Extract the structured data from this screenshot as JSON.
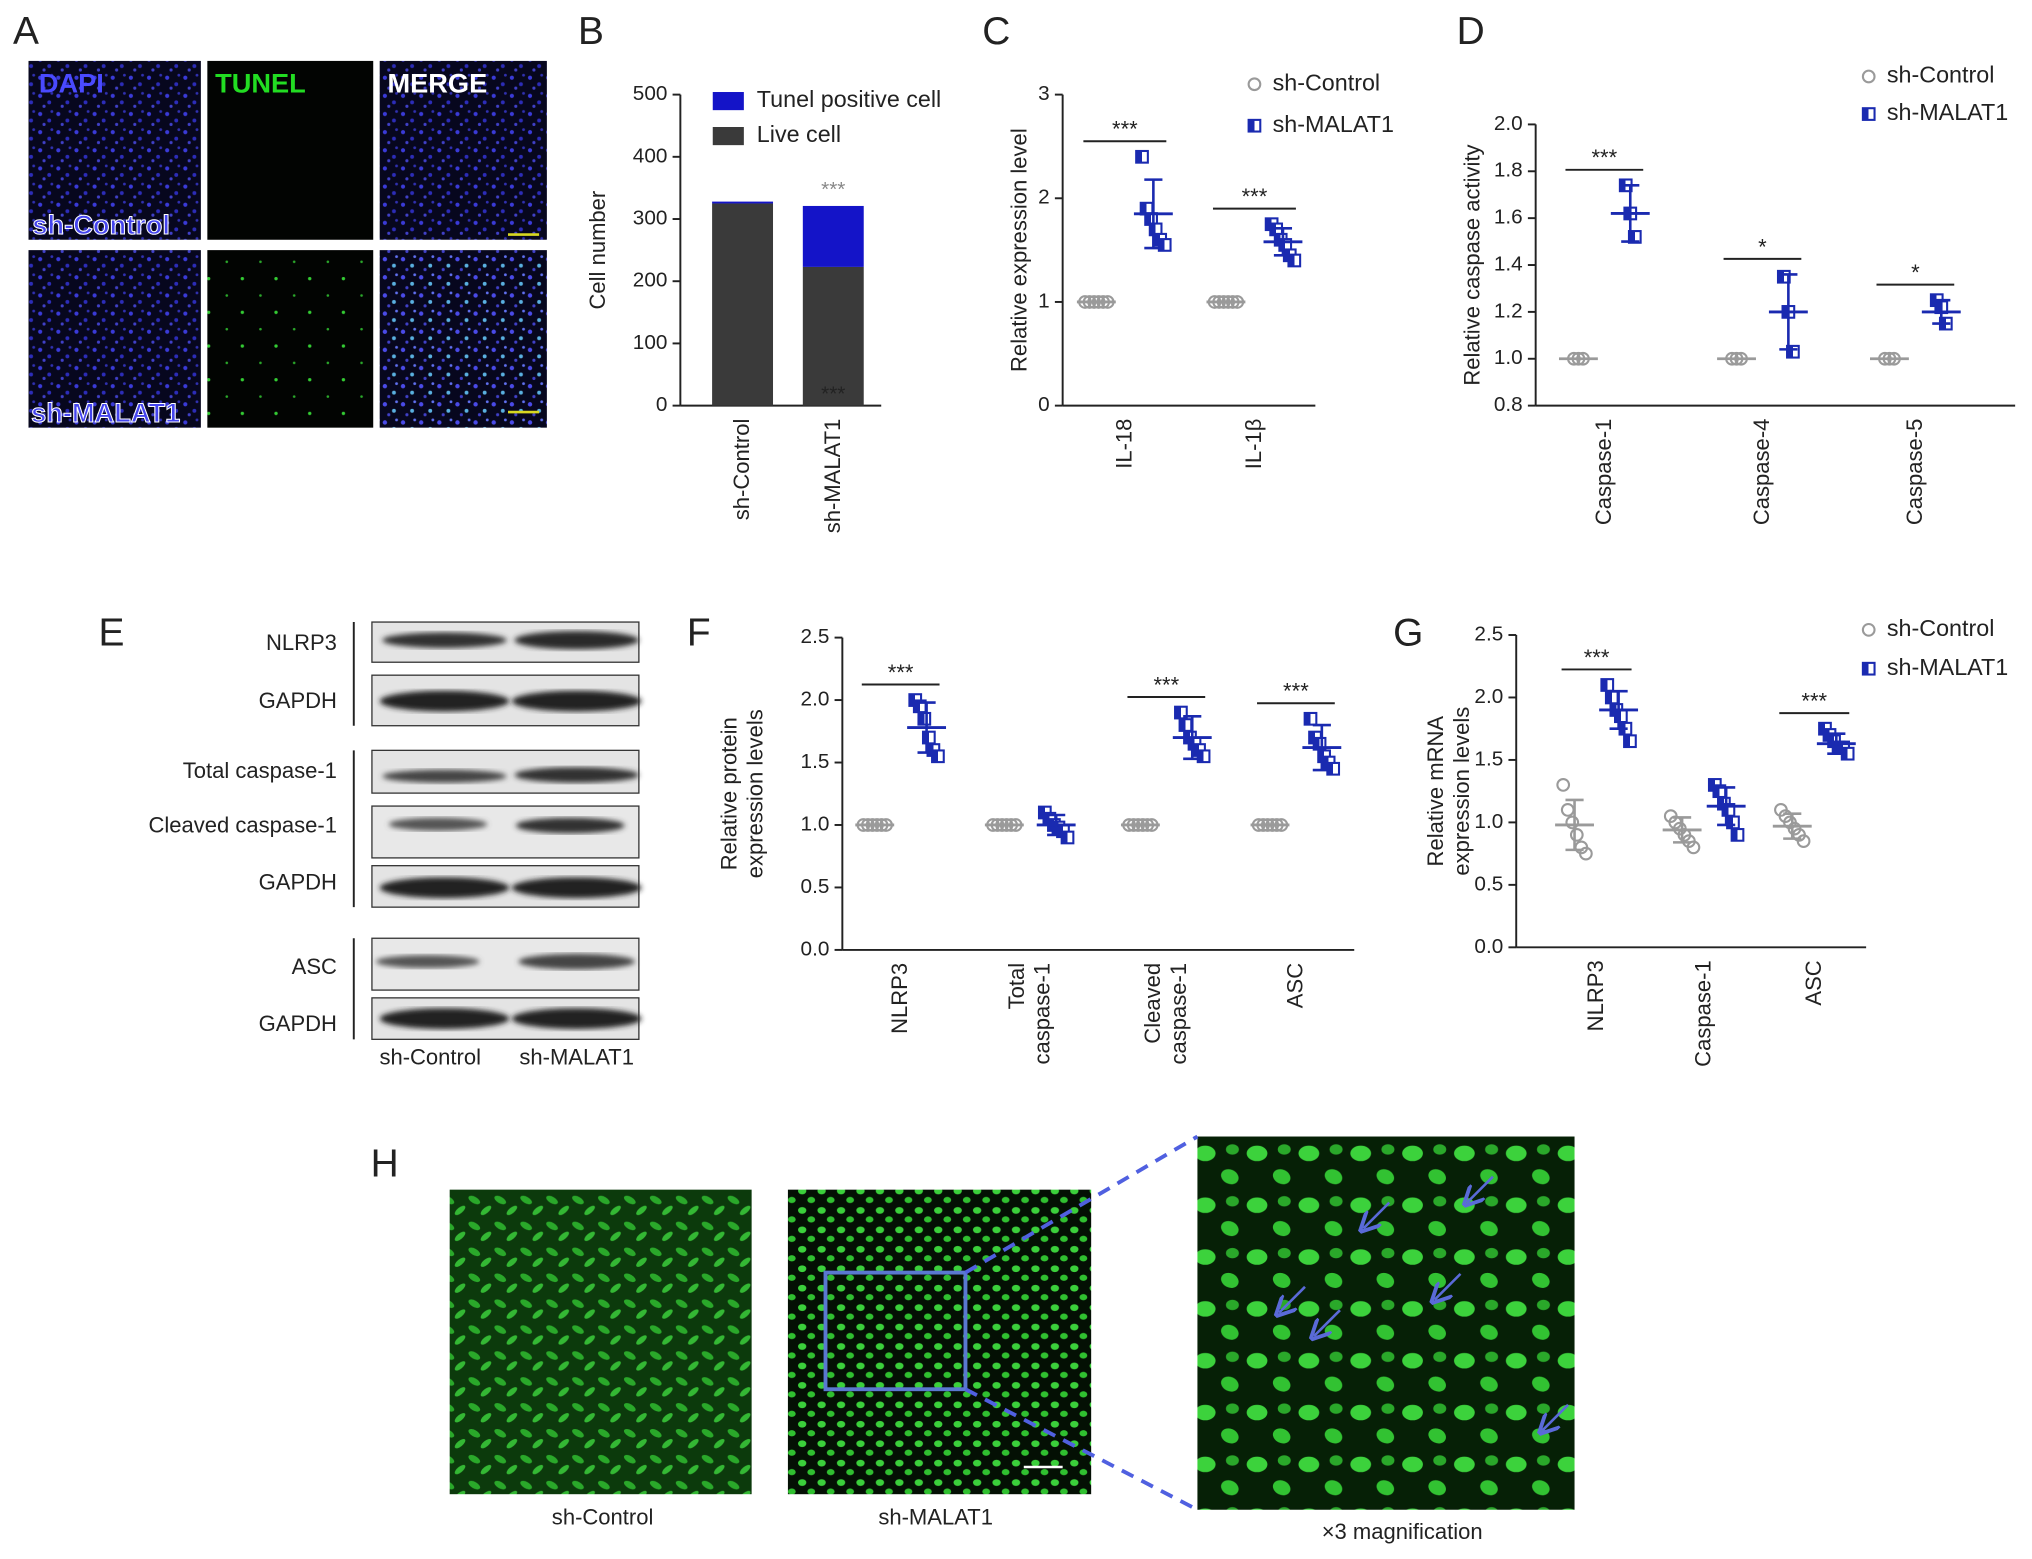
{
  "panel_labels": [
    "A",
    "B",
    "C",
    "D",
    "E",
    "F",
    "G",
    "H"
  ],
  "panel_a": {
    "channels": [
      "DAPI",
      "TUNEL",
      "MERGE"
    ],
    "rows": [
      "sh-Control",
      "sh-MALAT1"
    ]
  },
  "panel_e": {
    "blots": [
      "NLRP3",
      "GAPDH",
      "Total caspase-1",
      "Cleaved caspase-1",
      "GAPDH",
      "ASC",
      "GAPDH"
    ],
    "lanes": [
      "sh-Control",
      "sh-MALAT1"
    ]
  },
  "panel_h": {
    "images": [
      "sh-Control",
      "sh-MALAT1",
      "×3 magnification"
    ]
  },
  "chart_data": [
    {
      "type": "stacked_bar",
      "ylabel": "Cell number",
      "categories": [
        "sh-Control",
        "sh-MALAT1"
      ],
      "series": [
        {
          "name": "Live cell",
          "color": "#3a3a3a",
          "values": [
            325,
            223
          ],
          "annotations": [
            null,
            "***"
          ]
        },
        {
          "name": "Tunel positive cell",
          "color": "#1414c8",
          "values": [
            3,
            98
          ]
        }
      ],
      "annotations": [
        null,
        "***"
      ],
      "ylim": [
        0,
        500
      ],
      "yticks": [
        0,
        100,
        200,
        300,
        400,
        500
      ]
    },
    {
      "type": "dot",
      "ylabel": "Relative expression level",
      "categories": [
        "IL-18",
        "IL-1β"
      ],
      "series": [
        {
          "name": "sh-Control",
          "color": "#9a9a9a",
          "marker": "circle",
          "values": [
            [
              1,
              1,
              1,
              1,
              1,
              1
            ],
            [
              1,
              1,
              1,
              1,
              1,
              1
            ]
          ],
          "means": [
            1,
            1
          ],
          "sds": [
            0,
            0
          ]
        },
        {
          "name": "sh-MALAT1",
          "color": "#1a2ab0",
          "marker": "half-square",
          "values": [
            [
              2.4,
              1.9,
              1.8,
              1.7,
              1.6,
              1.55
            ],
            [
              1.75,
              1.7,
              1.6,
              1.55,
              1.45,
              1.4
            ]
          ],
          "means": [
            1.85,
            1.58
          ],
          "sds": [
            0.33,
            0.13
          ]
        }
      ],
      "annotations": [
        "***",
        "***"
      ],
      "ylim": [
        0,
        3
      ],
      "yticks": [
        0,
        1,
        2,
        3
      ]
    },
    {
      "type": "dot",
      "ylabel": "Relative caspase activity",
      "categories": [
        "Caspase-1",
        "Caspase-4",
        "Caspase-5"
      ],
      "series": [
        {
          "name": "sh-Control",
          "color": "#9a9a9a",
          "marker": "circle",
          "values": [
            [
              1,
              1,
              1
            ],
            [
              1,
              1,
              1
            ],
            [
              1,
              1,
              1
            ]
          ],
          "means": [
            1,
            1,
            1
          ],
          "sds": [
            0,
            0,
            0
          ]
        },
        {
          "name": "sh-MALAT1",
          "color": "#1a2ab0",
          "marker": "half-square",
          "values": [
            [
              1.74,
              1.62,
              1.52
            ],
            [
              1.35,
              1.2,
              1.03
            ],
            [
              1.25,
              1.22,
              1.15
            ]
          ],
          "means": [
            1.62,
            1.2,
            1.2
          ],
          "sds": [
            0.12,
            0.16,
            0.05
          ]
        }
      ],
      "annotations": [
        "***",
        "*",
        "*"
      ],
      "ylim": [
        0.8,
        2.0
      ],
      "yticks": [
        0.8,
        {
          "value": 1,
          "label": "1.0"
        },
        1.2,
        1.4,
        1.6,
        1.8,
        {
          "value": 2,
          "label": "2.0"
        }
      ]
    },
    {
      "type": "dot",
      "ylabel": "Relative protein\nexpression levels",
      "categories": [
        "NLRP3",
        "Total\ncaspase-1",
        "Cleaved\ncaspase-1",
        "ASC"
      ],
      "series": [
        {
          "name": "sh-Control",
          "color": "#9a9a9a",
          "marker": "circle",
          "values": [
            [
              1,
              1,
              1,
              1,
              1,
              1
            ],
            [
              1,
              1,
              1,
              1,
              1,
              1
            ],
            [
              1,
              1,
              1,
              1,
              1,
              1
            ],
            [
              1,
              1,
              1,
              1,
              1,
              1
            ]
          ],
          "means": [
            1,
            1,
            1,
            1
          ],
          "sds": [
            0,
            0,
            0,
            0
          ]
        },
        {
          "name": "sh-MALAT1",
          "color": "#1a2ab0",
          "marker": "half-square",
          "values": [
            [
              2.0,
              1.95,
              1.85,
              1.7,
              1.6,
              1.55
            ],
            [
              1.1,
              1.05,
              1.0,
              0.98,
              0.95,
              0.9
            ],
            [
              1.9,
              1.8,
              1.7,
              1.65,
              1.6,
              1.55
            ],
            [
              1.85,
              1.7,
              1.65,
              1.55,
              1.5,
              1.45
            ]
          ],
          "means": [
            1.78,
            1.0,
            1.7,
            1.62
          ],
          "sds": [
            0.2,
            0.08,
            0.17,
            0.18
          ]
        }
      ],
      "annotations": [
        "***",
        null,
        "***",
        "***"
      ],
      "ylim": [
        0,
        2.5
      ],
      "yticks": [
        {
          "value": 0,
          "label": "0.0"
        },
        0.5,
        {
          "value": 1,
          "label": "1.0"
        },
        1.5,
        {
          "value": 2,
          "label": "2.0"
        },
        2.5
      ]
    },
    {
      "type": "dot",
      "ylabel": "Relative mRNA\nexpression levels",
      "categories": [
        "NLRP3",
        "Caspase-1",
        "ASC"
      ],
      "series": [
        {
          "name": "sh-Control",
          "color": "#9a9a9a",
          "marker": "circle",
          "values": [
            [
              1.3,
              1.1,
              1.0,
              0.9,
              0.8,
              0.75
            ],
            [
              1.05,
              1.0,
              0.95,
              0.9,
              0.85,
              0.8
            ],
            [
              1.1,
              1.05,
              1.0,
              0.95,
              0.9,
              0.85
            ]
          ],
          "means": [
            0.98,
            0.94,
            0.97
          ],
          "sds": [
            0.2,
            0.1,
            0.1
          ]
        },
        {
          "name": "sh-MALAT1",
          "color": "#1a2ab0",
          "marker": "half-square",
          "values": [
            [
              2.1,
              2.0,
              1.9,
              1.85,
              1.75,
              1.65
            ],
            [
              1.3,
              1.25,
              1.15,
              1.1,
              1.0,
              0.9
            ],
            [
              1.75,
              1.7,
              1.65,
              1.6,
              1.6,
              1.55
            ]
          ],
          "means": [
            1.9,
            1.13,
            1.63
          ],
          "sds": [
            0.15,
            0.15,
            0.08
          ]
        }
      ],
      "annotations": [
        "***",
        null,
        "***"
      ],
      "ylim": [
        0,
        2.5
      ],
      "yticks": [
        {
          "value": 0,
          "label": "0.0"
        },
        0.5,
        {
          "value": 1,
          "label": "1.0"
        },
        1.5,
        {
          "value": 2,
          "label": "2.0"
        },
        2.5
      ]
    }
  ]
}
